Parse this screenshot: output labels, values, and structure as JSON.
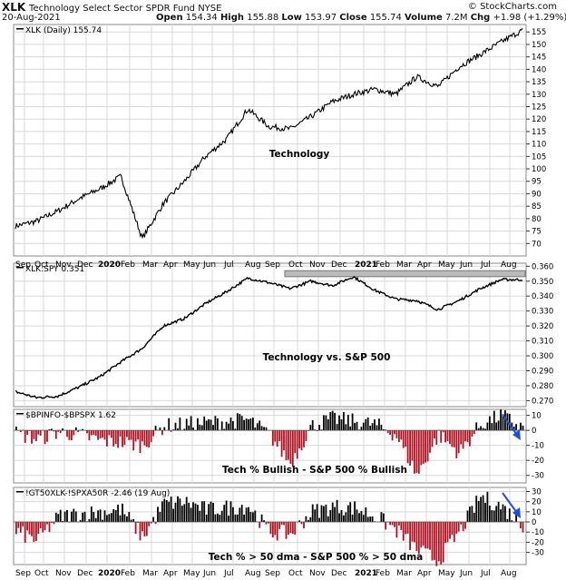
{
  "header": {
    "symbol": "XLK",
    "name": "Technology Select Sector SPDR Fund NYSE",
    "watermark": "© StockCharts.com",
    "date": "20-Aug-2021",
    "open_label": "Open",
    "open": "154.34",
    "high_label": "High",
    "high": "155.88",
    "low_label": "Low",
    "low": "153.97",
    "close_label": "Close",
    "close": "155.74",
    "volume_label": "Volume",
    "volume": "7.2M",
    "chg_label": "Chg",
    "chg": "+1.98 (+1.29%)"
  },
  "colors": {
    "line": "#000000",
    "bar_pos": "#000000",
    "bar_neg": "#b01020",
    "grid": "#d8d8d8",
    "band": "#999999",
    "arrow": "#1f4fd8"
  },
  "chart_data": [
    {
      "type": "line",
      "legend": "XLK (Daily) 155.74",
      "annotation": "Technology",
      "ylim": [
        65,
        158
      ],
      "yticks": [
        "155",
        "150",
        "145",
        "140",
        "135",
        "130",
        "125",
        "120",
        "115",
        "110",
        "105",
        "100",
        "95",
        "90",
        "85",
        "80",
        "75",
        "70"
      ],
      "x": [
        "Sep",
        "Oct",
        "Nov",
        "Dec",
        "2020",
        "Feb",
        "Mar",
        "Apr",
        "May",
        "Jun",
        "Jul",
        "Aug",
        "Sep",
        "Oct",
        "Nov",
        "Dec",
        "2021",
        "Feb",
        "Mar",
        "Apr",
        "May",
        "Jun",
        "Jul",
        "Aug",
        "Aug-20"
      ],
      "values": [
        77,
        79,
        83,
        88,
        92,
        97,
        72,
        86,
        95,
        105,
        112,
        124,
        117,
        116,
        121,
        127,
        130,
        132,
        130,
        137,
        133,
        141,
        146,
        151,
        155.7
      ]
    },
    {
      "type": "line",
      "legend": "XLK:SPY 0.351",
      "annotation": "Technology vs. S&P 500",
      "ylim": [
        0.266,
        0.362
      ],
      "yticks": [
        "0.360",
        "0.350",
        "0.340",
        "0.330",
        "0.320",
        "0.310",
        "0.300",
        "0.290",
        "0.280",
        "0.270"
      ],
      "x": [
        "Sep",
        "Oct",
        "Nov",
        "Dec",
        "2020",
        "Feb",
        "Mar",
        "Apr",
        "May",
        "Jun",
        "Jul",
        "Aug",
        "Sep",
        "Oct",
        "Nov",
        "Dec",
        "2021",
        "Feb",
        "Mar",
        "Apr",
        "May",
        "Jun",
        "Jul",
        "Aug",
        "Aug-20"
      ],
      "values": [
        0.276,
        0.272,
        0.273,
        0.279,
        0.286,
        0.296,
        0.305,
        0.32,
        0.325,
        0.335,
        0.343,
        0.352,
        0.349,
        0.345,
        0.35,
        0.347,
        0.353,
        0.344,
        0.338,
        0.337,
        0.331,
        0.337,
        0.345,
        0.351,
        0.351
      ],
      "band": {
        "range": [
          0.353,
          0.357
        ]
      }
    },
    {
      "type": "bar",
      "legend": "$BPINFO-$BPSPX 1.62",
      "annotation": "Tech % Bullish - S&P 500 % Bullish",
      "ylim": [
        -35,
        14
      ],
      "yticks": [
        "10",
        "0",
        "-10",
        "-20",
        "-30"
      ],
      "x": [
        "Sep",
        "Oct",
        "Nov",
        "Dec",
        "2020",
        "Feb",
        "Mar",
        "Apr",
        "May",
        "Jun",
        "Jul",
        "Aug",
        "Sep",
        "Oct",
        "Nov",
        "Dec",
        "2021",
        "Feb",
        "Mar",
        "Apr",
        "May",
        "Jun",
        "Jul",
        "Aug",
        "Aug-20"
      ],
      "values": [
        -2,
        -6,
        -1,
        -3,
        -7,
        -8,
        -10,
        3,
        4,
        5,
        6,
        7,
        -3,
        -22,
        3,
        8,
        6,
        4,
        -3,
        -30,
        -3,
        -15,
        4,
        10,
        1.62
      ]
    },
    {
      "type": "bar",
      "legend": "!GT50XLK-!SPXA50R -2.46 (19 Aug)",
      "annotation": "Tech % > 50 dma - S&P 500 % > 50 dma",
      "ylim": [
        -42,
        34
      ],
      "yticks": [
        "30",
        "20",
        "10",
        "0",
        "-10",
        "-20",
        "-30"
      ],
      "x": [
        "Sep",
        "Oct",
        "Nov",
        "Dec",
        "2020",
        "Feb",
        "Mar",
        "Apr",
        "May",
        "Jun",
        "Jul",
        "Aug",
        "Sep",
        "Oct",
        "Nov",
        "Dec",
        "2021",
        "Feb",
        "Mar",
        "Apr",
        "May",
        "Jun",
        "Jul",
        "Aug",
        "Aug-20"
      ],
      "values": [
        -10,
        -18,
        5,
        8,
        10,
        12,
        -15,
        18,
        20,
        12,
        14,
        16,
        -10,
        -12,
        10,
        15,
        14,
        6,
        -8,
        -28,
        -38,
        -10,
        25,
        15,
        -2.46
      ]
    }
  ],
  "x_axis_labels": [
    "Sep",
    "Oct",
    "Nov",
    "Dec",
    "2020",
    "Feb",
    "Mar",
    "Apr",
    "May",
    "Jun",
    "Jul",
    "Aug",
    "Sep",
    "Oct",
    "Nov",
    "Dec",
    "2021",
    "Feb",
    "Mar",
    "Apr",
    "May",
    "Jun",
    "Jul",
    "Aug"
  ]
}
